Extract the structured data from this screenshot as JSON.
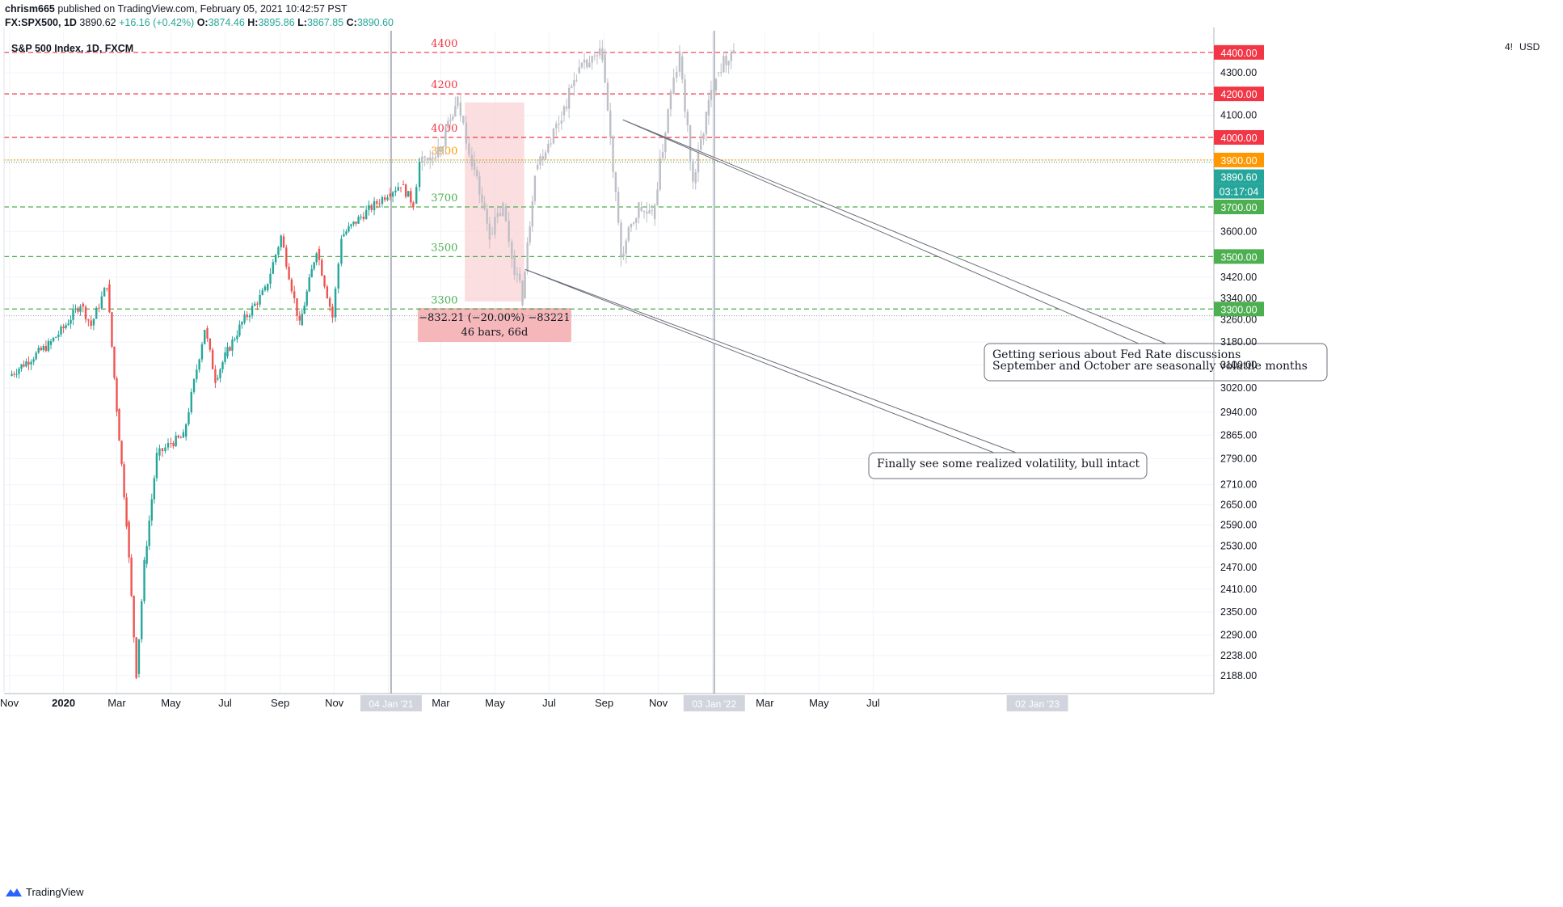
{
  "header": {
    "author": "chrism665",
    "published_text": "published on TradingView.com, February 05, 2021 10:42:57 PST",
    "symbol": "FX:SPX500, 1D",
    "price": "3890.62",
    "change": "+16.16 (+0.42%)",
    "open_label": "O:",
    "open": "3874.46",
    "high_label": "H:",
    "high": "3895.86",
    "low_label": "L:",
    "low": "3867.85",
    "close_label": "C:",
    "close": "3890.60"
  },
  "pane_title": "S&P 500 Index, 1D, FXCM",
  "currency_label": "USD",
  "footer": {
    "brand": "TradingView"
  },
  "colors": {
    "up": "#26a69a",
    "down": "#ef5350",
    "projection": "#bdbfc6",
    "resistance": "#f23645",
    "support": "#4caf50",
    "pivot": "#ff9800",
    "measure_fill": "#f9d3d5",
    "current_price": "#26a69a"
  },
  "chart_data": {
    "type": "candlestick",
    "title": "S&P 500 Index, 1D, FXCM",
    "y_scale": "log",
    "ylim": [
      2160,
      4500
    ],
    "x_axis_ticks": [
      "Nov",
      "2020",
      "Mar",
      "May",
      "Jul",
      "Sep",
      "Nov",
      "2021",
      "Mar",
      "May",
      "Jul",
      "Sep",
      "Nov",
      "2022",
      "Mar",
      "May",
      "Jul"
    ],
    "x_axis_highlight_labels": [
      "04 Jan '21",
      "03 Jan '22",
      "02 Jan '23"
    ],
    "y_axis_ticks": [
      "4300.00",
      "4100.00",
      "3900.00",
      "3600.00",
      "3420.00",
      "3340.00",
      "3260.00",
      "3180.00",
      "3100.00",
      "3020.00",
      "2940.00",
      "2865.00",
      "2790.00",
      "2710.00",
      "2650.00",
      "2590.00",
      "2530.00",
      "2470.00",
      "2410.00",
      "2350.00",
      "2290.00",
      "2238.00",
      "2188.00"
    ],
    "y_axis_top_partial": "4!",
    "price_path_real": [
      [
        "2019-11-01",
        3062
      ],
      [
        "2019-11-20",
        3110
      ],
      [
        "2019-12-15",
        3170
      ],
      [
        "2020-01-01",
        3230
      ],
      [
        "2020-01-20",
        3320
      ],
      [
        "2020-02-01",
        3240
      ],
      [
        "2020-02-19",
        3393
      ],
      [
        "2020-03-01",
        2950
      ],
      [
        "2020-03-12",
        2600
      ],
      [
        "2020-03-23",
        2192
      ],
      [
        "2020-04-01",
        2480
      ],
      [
        "2020-04-15",
        2800
      ],
      [
        "2020-05-01",
        2840
      ],
      [
        "2020-05-15",
        2860
      ],
      [
        "2020-06-08",
        3230
      ],
      [
        "2020-06-20",
        3050
      ],
      [
        "2020-07-01",
        3130
      ],
      [
        "2020-07-20",
        3250
      ],
      [
        "2020-08-15",
        3370
      ],
      [
        "2020-09-02",
        3580
      ],
      [
        "2020-09-23",
        3240
      ],
      [
        "2020-10-12",
        3530
      ],
      [
        "2020-10-30",
        3270
      ],
      [
        "2020-11-09",
        3580
      ],
      [
        "2020-12-01",
        3660
      ],
      [
        "2020-12-31",
        3756
      ],
      [
        "2021-01-15",
        3795
      ],
      [
        "2021-01-29",
        3714
      ],
      [
        "2021-02-05",
        3890
      ]
    ],
    "price_path_projection": [
      [
        "2021-02-05",
        3890
      ],
      [
        "2021-03-01",
        3960
      ],
      [
        "2021-03-20",
        4160
      ],
      [
        "2021-04-05",
        3900
      ],
      [
        "2021-04-25",
        3590
      ],
      [
        "2021-05-10",
        3700
      ],
      [
        "2021-05-20",
        3500
      ],
      [
        "2021-06-01",
        3340
      ],
      [
        "2021-06-15",
        3860
      ],
      [
        "2021-07-15",
        4100
      ],
      [
        "2021-08-01",
        4300
      ],
      [
        "2021-08-30",
        4390
      ],
      [
        "2021-09-20",
        3500
      ],
      [
        "2021-10-10",
        3700
      ],
      [
        "2021-10-25",
        3650
      ],
      [
        "2021-11-15",
        4200
      ],
      [
        "2021-11-25",
        4380
      ],
      [
        "2021-12-10",
        3800
      ],
      [
        "2021-12-25",
        4100
      ],
      [
        "2022-01-05",
        4300
      ],
      [
        "2022-01-25",
        4420
      ]
    ],
    "horizontal_levels": [
      {
        "value": 4400,
        "label": "4400",
        "tag": "4400.00",
        "kind": "resistance"
      },
      {
        "value": 4200,
        "label": "4200",
        "tag": "4200.00",
        "kind": "resistance"
      },
      {
        "value": 4000,
        "label": "4000",
        "tag": "4000.00",
        "kind": "resistance"
      },
      {
        "value": 3900,
        "label": "3900",
        "tag": "3900.00",
        "kind": "pivot"
      },
      {
        "value": 3700,
        "label": "3700",
        "tag": "3700.00",
        "kind": "support"
      },
      {
        "value": 3500,
        "label": "3500",
        "tag": "3500.00",
        "kind": "support"
      },
      {
        "value": 3300,
        "label": "3300",
        "tag": "3300.00",
        "kind": "support"
      }
    ],
    "current_price": {
      "value": 3890.6,
      "tag": "3890.60",
      "countdown": "03:17:04"
    },
    "measure": {
      "from_date": "2021-03-28",
      "to_date": "2021-06-03",
      "high": 4160,
      "low": 3328,
      "line1": "−832.21 (−20.00%) −83221",
      "line2": "46 bars, 66d"
    },
    "annotations": [
      {
        "line1": "Getting serious about Fed Rate discussions",
        "line2": "September and October are seasonally volatile months"
      },
      {
        "line1": "Finally see some realized volatility, bull intact"
      }
    ],
    "vertical_markers": [
      "2021-01-04",
      "2022-01-03"
    ]
  }
}
